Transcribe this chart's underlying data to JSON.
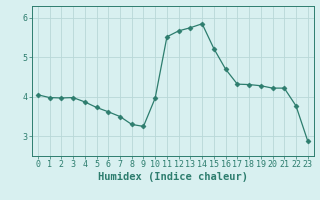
{
  "x": [
    0,
    1,
    2,
    3,
    4,
    5,
    6,
    7,
    8,
    9,
    10,
    11,
    12,
    13,
    14,
    15,
    16,
    17,
    18,
    19,
    20,
    21,
    22,
    23
  ],
  "y": [
    4.05,
    3.98,
    3.97,
    3.98,
    3.87,
    3.73,
    3.62,
    3.5,
    3.3,
    3.25,
    3.97,
    5.52,
    5.67,
    5.75,
    5.85,
    5.22,
    4.7,
    4.32,
    4.31,
    4.28,
    4.22,
    4.22,
    3.77,
    2.88
  ],
  "xlabel": "Humidex (Indice chaleur)",
  "bg_color": "#d8f0f0",
  "line_color": "#2d7d6e",
  "marker": "D",
  "marker_size": 2.5,
  "ylim": [
    2.5,
    6.3
  ],
  "xlim": [
    -0.5,
    23.5
  ],
  "yticks": [
    3,
    4,
    5,
    6
  ],
  "xticks": [
    0,
    1,
    2,
    3,
    4,
    5,
    6,
    7,
    8,
    9,
    10,
    11,
    12,
    13,
    14,
    15,
    16,
    17,
    18,
    19,
    20,
    21,
    22,
    23
  ],
  "grid_color": "#b8d8d8",
  "grid_major_color": "#c8e0e0",
  "tick_label_fontsize": 6,
  "xlabel_fontsize": 7.5
}
